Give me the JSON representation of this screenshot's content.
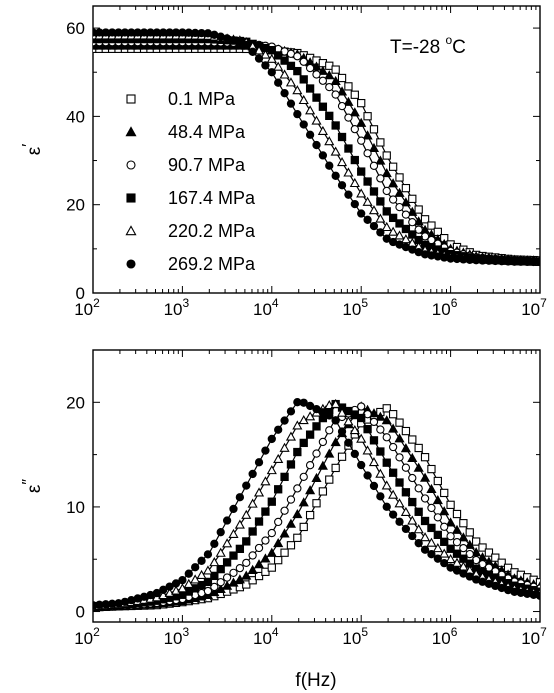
{
  "figure": {
    "xlabel": "f(Hz)",
    "annotation": "T=-28 °C",
    "annotation_parts": {
      "prefix": "T=-28 ",
      "sup": "o",
      "suffix": "C"
    }
  },
  "chart_data": [
    {
      "type": "scatter",
      "panel": "top",
      "ylabel": "ε′",
      "ylabel_parts": {
        "base": "ε",
        "mark": "′"
      },
      "xscale": "log",
      "xlim": [
        100,
        10000000
      ],
      "ylim": [
        0,
        65
      ],
      "x_ticks": [
        {
          "base": "10",
          "exp": "2"
        },
        {
          "base": "10",
          "exp": "3"
        },
        {
          "base": "10",
          "exp": "4"
        },
        {
          "base": "10",
          "exp": "5"
        },
        {
          "base": "10",
          "exp": "6"
        },
        {
          "base": "10",
          "exp": "7"
        }
      ],
      "y_ticks": [
        "0",
        "20",
        "40",
        "60"
      ],
      "legend_position": "left",
      "series": [
        {
          "name": "0.1 MPa",
          "marker": "square-open",
          "x": [
            100,
            200,
            500,
            1000,
            2000,
            5000,
            10000,
            20000,
            50000,
            100000,
            200000,
            500000,
            1000000,
            2000000,
            5000000,
            10000000
          ],
          "y": [
            55.3,
            55.3,
            55.3,
            55.3,
            55.3,
            55.3,
            55.0,
            54.3,
            51.0,
            43.0,
            30.5,
            17.0,
            11.0,
            8.5,
            7.6,
            7.4
          ]
        },
        {
          "name": "48.4 MPa",
          "marker": "triangle-filled",
          "x": [
            100,
            200,
            500,
            1000,
            2000,
            5000,
            10000,
            20000,
            50000,
            100000,
            200000,
            500000,
            1000000,
            2000000,
            5000000,
            10000000
          ],
          "y": [
            56.0,
            56.0,
            56.0,
            56.0,
            56.0,
            56.0,
            55.5,
            54.0,
            48.5,
            38.5,
            26.5,
            14.5,
            10.0,
            8.2,
            7.5,
            7.3
          ]
        },
        {
          "name": "90.7 MPa",
          "marker": "circle-open",
          "x": [
            100,
            200,
            500,
            1000,
            2000,
            5000,
            10000,
            20000,
            50000,
            100000,
            200000,
            500000,
            1000000,
            2000000,
            5000000,
            10000000
          ],
          "y": [
            56.8,
            56.8,
            56.8,
            56.8,
            56.8,
            56.6,
            55.8,
            53.5,
            45.5,
            34.5,
            22.5,
            13.0,
            9.5,
            8.0,
            7.4,
            7.2
          ]
        },
        {
          "name": "167.4 MPa",
          "marker": "square-filled",
          "x": [
            100,
            200,
            500,
            1000,
            2000,
            5000,
            10000,
            20000,
            50000,
            100000,
            200000,
            500000,
            1000000,
            2000000,
            5000000,
            10000000
          ],
          "y": [
            57.5,
            57.5,
            57.5,
            57.5,
            57.5,
            57.0,
            55.0,
            50.0,
            38.5,
            27.5,
            18.0,
            11.0,
            8.8,
            7.8,
            7.3,
            7.1
          ]
        },
        {
          "name": "220.2 MPa",
          "marker": "triangle-open",
          "x": [
            100,
            200,
            500,
            1000,
            2000,
            5000,
            10000,
            20000,
            50000,
            100000,
            200000,
            500000,
            1000000,
            2000000,
            5000000,
            10000000
          ],
          "y": [
            58.3,
            58.3,
            58.3,
            58.3,
            58.2,
            57.0,
            53.0,
            45.5,
            32.5,
            22.5,
            14.5,
            9.8,
            8.2,
            7.6,
            7.2,
            7.0
          ]
        },
        {
          "name": "269.2 MPa",
          "marker": "circle-filled",
          "x": [
            100,
            200,
            500,
            1000,
            2000,
            5000,
            10000,
            20000,
            50000,
            100000,
            200000,
            500000,
            1000000,
            2000000,
            5000000,
            10000000
          ],
          "y": [
            59.0,
            59.0,
            59.0,
            59.0,
            58.8,
            56.5,
            50.0,
            40.0,
            27.0,
            18.0,
            12.0,
            8.8,
            7.8,
            7.4,
            7.1,
            7.0
          ]
        }
      ]
    },
    {
      "type": "scatter",
      "panel": "bottom",
      "ylabel": "ε″",
      "ylabel_parts": {
        "base": "ε",
        "mark": "″"
      },
      "xlabel": "f(Hz)",
      "xscale": "log",
      "xlim": [
        100,
        10000000
      ],
      "ylim": [
        -1,
        25
      ],
      "x_ticks": [
        {
          "base": "10",
          "exp": "2"
        },
        {
          "base": "10",
          "exp": "3"
        },
        {
          "base": "10",
          "exp": "4"
        },
        {
          "base": "10",
          "exp": "5"
        },
        {
          "base": "10",
          "exp": "6"
        },
        {
          "base": "10",
          "exp": "7"
        }
      ],
      "y_ticks": [
        "0",
        "10",
        "20"
      ],
      "series": [
        {
          "name": "0.1 MPa",
          "marker": "square-open",
          "x": [
            100,
            200,
            500,
            1000,
            2000,
            5000,
            10000,
            20000,
            50000,
            100000,
            200000,
            500000,
            1000000,
            2000000,
            5000000,
            10000000
          ],
          "y": [
            0.4,
            0.5,
            0.6,
            0.9,
            1.3,
            2.5,
            4.2,
            7.2,
            13.5,
            18.0,
            19.5,
            15.0,
            10.2,
            6.5,
            3.8,
            2.8
          ]
        },
        {
          "name": "48.4 MPa",
          "marker": "triangle-filled",
          "x": [
            100,
            200,
            500,
            1000,
            2000,
            5000,
            10000,
            20000,
            50000,
            100000,
            200000,
            500000,
            1000000,
            2000000,
            5000000,
            10000000
          ],
          "y": [
            0.4,
            0.5,
            0.7,
            1.0,
            1.6,
            3.3,
            5.6,
            9.5,
            16.0,
            19.6,
            18.2,
            13.0,
            8.5,
            5.5,
            3.2,
            2.4
          ]
        },
        {
          "name": "90.7 MPa",
          "marker": "circle-open",
          "x": [
            100,
            200,
            500,
            1000,
            2000,
            5000,
            10000,
            20000,
            50000,
            100000,
            200000,
            500000,
            1000000,
            2000000,
            5000000,
            10000000
          ],
          "y": [
            0.4,
            0.5,
            0.8,
            1.2,
            2.0,
            4.5,
            7.5,
            12.0,
            18.2,
            19.6,
            16.5,
            11.0,
            7.2,
            4.8,
            2.9,
            2.2
          ]
        },
        {
          "name": "167.4 MPa",
          "marker": "square-filled",
          "x": [
            100,
            200,
            500,
            1000,
            2000,
            5000,
            10000,
            20000,
            50000,
            100000,
            200000,
            500000,
            1000000,
            2000000,
            5000000,
            10000000
          ],
          "y": [
            0.5,
            0.6,
            1.0,
            1.6,
            2.9,
            6.5,
            10.5,
            15.5,
            19.9,
            18.5,
            14.0,
            8.8,
            6.0,
            4.0,
            2.5,
            1.9
          ]
        },
        {
          "name": "220.2 MPa",
          "marker": "triangle-open",
          "x": [
            100,
            200,
            500,
            1000,
            2000,
            5000,
            10000,
            20000,
            50000,
            100000,
            200000,
            500000,
            1000000,
            2000000,
            5000000,
            10000000
          ],
          "y": [
            0.5,
            0.7,
            1.3,
            2.2,
            4.0,
            9.0,
            13.5,
            18.0,
            20.0,
            16.5,
            11.8,
            7.2,
            5.0,
            3.5,
            2.2,
            1.7
          ]
        },
        {
          "name": "269.2 MPa",
          "marker": "circle-filled",
          "x": [
            100,
            200,
            500,
            1000,
            2000,
            5000,
            10000,
            20000,
            50000,
            100000,
            200000,
            500000,
            1000000,
            2000000,
            5000000,
            10000000
          ],
          "y": [
            0.6,
            0.8,
            1.7,
            3.0,
            5.6,
            11.8,
            16.5,
            20.2,
            18.5,
            14.0,
            9.8,
            6.0,
            4.2,
            3.0,
            1.9,
            1.5
          ]
        }
      ]
    }
  ]
}
